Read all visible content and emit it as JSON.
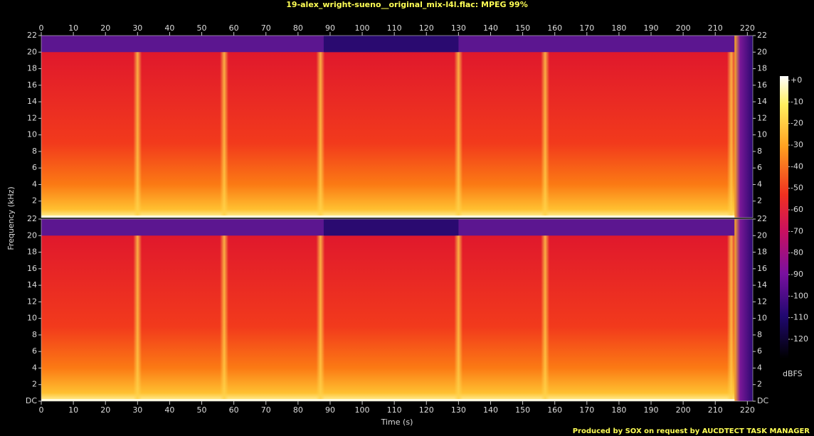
{
  "chart_data": {
    "type": "spectrogram",
    "title": "19-alex_wright-sueno__original_mix-l4l.flac: MPEG 99%",
    "xlabel": "Time (s)",
    "ylabel": "Frequency (kHz)",
    "xlim": [
      0,
      221.7
    ],
    "xticks": [
      0,
      10,
      20,
      30,
      40,
      50,
      60,
      70,
      80,
      90,
      100,
      110,
      120,
      130,
      140,
      150,
      160,
      170,
      180,
      190,
      200,
      210,
      220
    ],
    "ylim": [
      0,
      22
    ],
    "yticks": [
      {
        "value": 0,
        "label": "DC"
      },
      2,
      4,
      6,
      8,
      10,
      12,
      14,
      16,
      18,
      20,
      22
    ],
    "colorbar": {
      "label": "dBFS",
      "lim": [
        -120,
        0
      ],
      "ticks": [
        {
          "value": 0,
          "label": "+0"
        },
        -10,
        -20,
        -30,
        -40,
        -50,
        -60,
        -70,
        -80,
        -90,
        -100,
        -110,
        -120
      ]
    },
    "footer": "Produced by SOX on request by AUCDTECT TASK MANAGER"
  }
}
